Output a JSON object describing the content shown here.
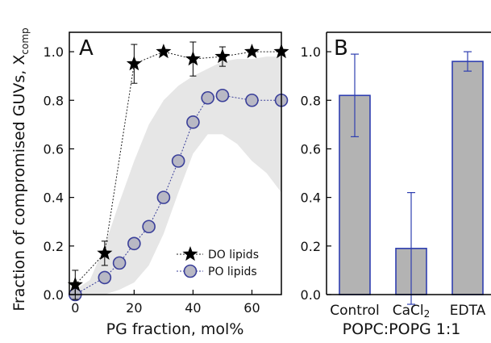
{
  "chart_data": [
    {
      "type": "scatter",
      "panel_label": "A",
      "xlabel": "PG fraction, mol%",
      "ylabel": "Fraction of compromised GUVs, X",
      "ylabel_sub": "comp",
      "xlim": [
        -2,
        70
      ],
      "ylim": [
        0,
        1.08
      ],
      "xticks": [
        "0",
        "20",
        "40",
        "60"
      ],
      "xtick_values": [
        0,
        20,
        40,
        60
      ],
      "yticks": [
        "0.0",
        "0.2",
        "0.4",
        "0.6",
        "0.8",
        "1.0"
      ],
      "ytick_values": [
        0,
        0.2,
        0.4,
        0.6,
        0.8,
        1.0
      ],
      "legend": {
        "position": "bottom-right",
        "entries": [
          "DO lipids",
          "PO lipids"
        ]
      },
      "series": [
        {
          "name": "DO lipids",
          "marker": "star",
          "color": "#000000",
          "x": [
            0,
            10,
            20,
            30,
            40,
            50,
            60,
            70
          ],
          "y": [
            0.04,
            0.17,
            0.95,
            1.0,
            0.97,
            0.98,
            1.0,
            1.0
          ],
          "err": [
            0.06,
            0.05,
            0.08,
            0.0,
            0.07,
            0.04,
            0.0,
            0.0
          ]
        },
        {
          "name": "PO lipids",
          "marker": "circle",
          "color": "#b8b8c4",
          "edge_color": "#3a3f9a",
          "x": [
            0,
            10,
            15,
            20,
            25,
            30,
            35,
            40,
            45,
            50,
            60,
            70
          ],
          "y": [
            0.0,
            0.07,
            0.13,
            0.21,
            0.28,
            0.4,
            0.55,
            0.71,
            0.81,
            0.82,
            0.8,
            0.8
          ]
        }
      ],
      "band": {
        "color": "#e6e6e6",
        "x": [
          0,
          5,
          10,
          15,
          20,
          25,
          30,
          35,
          40,
          45,
          50,
          55,
          60,
          65,
          70
        ],
        "upper": [
          0.02,
          0.06,
          0.2,
          0.38,
          0.55,
          0.7,
          0.8,
          0.86,
          0.9,
          0.93,
          0.96,
          0.97,
          0.97,
          0.98,
          0.98
        ],
        "lower": [
          0.0,
          0.0,
          0.0,
          0.02,
          0.05,
          0.12,
          0.25,
          0.42,
          0.58,
          0.66,
          0.66,
          0.62,
          0.55,
          0.5,
          0.42
        ]
      }
    },
    {
      "type": "bar",
      "panel_label": "B",
      "xlabel": "POPC:POPG 1:1",
      "categories": [
        "Control",
        "CaCl",
        "EDTA"
      ],
      "category_subscripts": [
        "",
        "2",
        ""
      ],
      "values": [
        0.82,
        0.19,
        0.96
      ],
      "errors": [
        0.17,
        0.23,
        0.04
      ],
      "bar_color": "#b3b3b3",
      "bar_edge_color": "#2f3fb0",
      "ylim": [
        0,
        1.08
      ],
      "yticks": [
        "0.0",
        "0.2",
        "0.4",
        "0.6",
        "0.8",
        "1.0"
      ],
      "ytick_values": [
        0,
        0.2,
        0.4,
        0.6,
        0.8,
        1.0
      ]
    }
  ]
}
